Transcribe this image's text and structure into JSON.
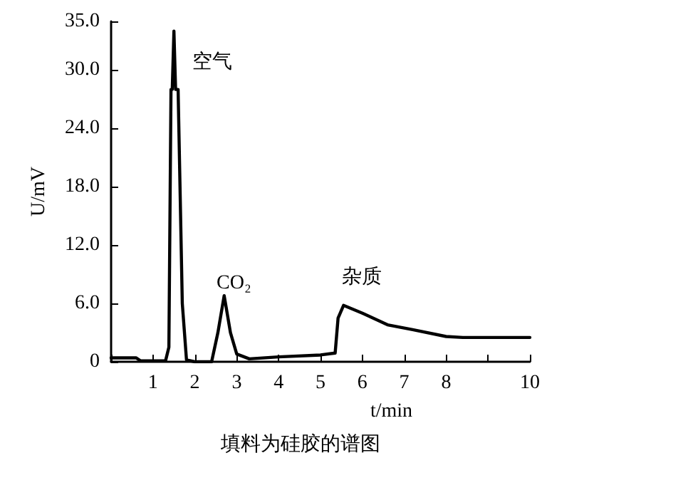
{
  "chart_data": {
    "type": "line",
    "xlabel": "t/min",
    "ylabel": "U/mV",
    "annotations": [
      "空气",
      "CO₂",
      "杂质",
      "填料为硅胶的谱图"
    ],
    "x": [
      0,
      0.6,
      0.7,
      1.3,
      1.38,
      1.43,
      1.46,
      1.5,
      1.54,
      1.6,
      1.7,
      1.8,
      2.0,
      2.4,
      2.55,
      2.7,
      2.85,
      3.0,
      3.3,
      4.0,
      5.0,
      5.35,
      5.42,
      5.55,
      6.0,
      6.6,
      7.2,
      8.0,
      8.4,
      10
    ],
    "series": [
      {
        "color": "#000000",
        "values": [
          0.4,
          0.4,
          0.1,
          0.1,
          1.5,
          28,
          28,
          34,
          28,
          28,
          6,
          0.2,
          0,
          0,
          3,
          6.8,
          3,
          0.8,
          0.3,
          0.5,
          0.7,
          0.9,
          4.5,
          5.8,
          5.0,
          3.8,
          3.3,
          2.6,
          2.5,
          2.5
        ]
      }
    ],
    "xlim": [
      0,
      10
    ],
    "xticks": [
      {
        "value": 0,
        "label": null
      },
      1,
      2,
      3,
      4,
      5,
      6,
      7,
      8,
      {
        "value": 9,
        "label": null
      },
      10
    ],
    "ylim": [
      0,
      35
    ],
    "yticks": [
      {
        "value": 0,
        "label": "0"
      },
      {
        "value": 6,
        "label": "6.0"
      },
      {
        "value": 12,
        "label": "12.0"
      },
      {
        "value": 18,
        "label": "18.0"
      },
      {
        "value": 24,
        "label": "24.0"
      },
      {
        "value": 30,
        "label": "30.0"
      },
      {
        "value": 35,
        "label": "35.0"
      }
    ],
    "marker": "none",
    "line_style": "solid"
  }
}
